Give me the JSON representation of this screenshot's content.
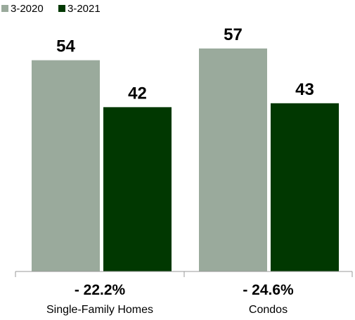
{
  "chart_data": {
    "type": "bar",
    "title": "",
    "xlabel": "",
    "ylabel": "",
    "ylim": [
      0,
      64
    ],
    "grid": false,
    "legend_position": "top-left",
    "categories": [
      "Single-Family Homes",
      "Condos"
    ],
    "series": [
      {
        "name": "3-2020",
        "color": "#9aaa9c",
        "values": [
          54,
          57
        ]
      },
      {
        "name": "3-2021",
        "color": "#013801",
        "values": [
          42,
          43
        ]
      }
    ],
    "changes": [
      "- 22.2%",
      "- 24.6%"
    ]
  }
}
